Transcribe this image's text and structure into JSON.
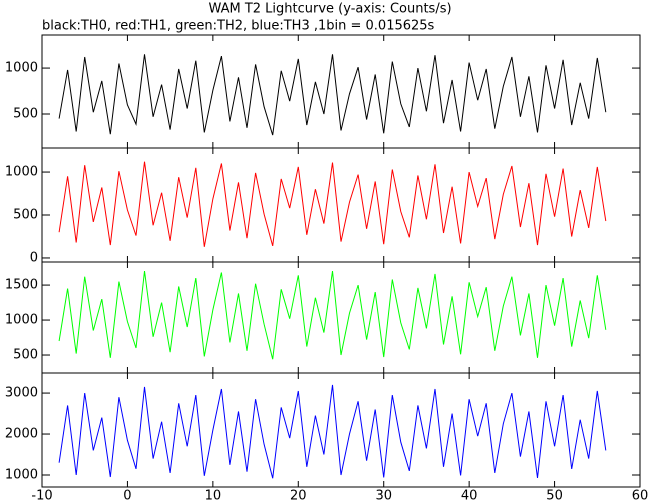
{
  "title": "WAM T2 Lightcurve (y-axis: Counts/s)",
  "subtitle": "black:TH0, red:TH1, green:TH2, blue:TH3 ,1bin = 0.015625s",
  "chart_data": [
    {
      "type": "line",
      "color": "#000000",
      "x": [
        -8,
        -7,
        -6,
        -5,
        -4,
        -3,
        -2,
        -1,
        0,
        1,
        2,
        3,
        4,
        5,
        6,
        7,
        8,
        9,
        10,
        11,
        12,
        13,
        14,
        15,
        16,
        17,
        18,
        19,
        20,
        21,
        22,
        23,
        24,
        25,
        26,
        27,
        28,
        29,
        30,
        31,
        32,
        33,
        34,
        35,
        36,
        37,
        38,
        39,
        40,
        41,
        42,
        43,
        44,
        45,
        46,
        47,
        48,
        49,
        50,
        51,
        52,
        53,
        54,
        55,
        56
      ],
      "values": [
        450,
        980,
        310,
        1120,
        520,
        860,
        280,
        1050,
        600,
        390,
        1150,
        470,
        820,
        330,
        990,
        560,
        1080,
        300,
        760,
        1130,
        420,
        900,
        350,
        1040,
        580,
        270,
        970,
        640,
        1100,
        380,
        850,
        500,
        1150,
        320,
        720,
        1010,
        440,
        930,
        290,
        1070,
        610,
        360,
        1000,
        530,
        1140,
        400,
        870,
        310,
        1060,
        650,
        990,
        340,
        800,
        1120,
        470,
        910,
        300,
        1030,
        560,
        1090,
        380,
        840,
        450,
        1110,
        520
      ],
      "xlim": [
        -10,
        60
      ],
      "xticks": [
        -10,
        0,
        10,
        20,
        30,
        40,
        50,
        60
      ],
      "ylim": [
        130,
        1360
      ],
      "yticks": [
        500,
        1000
      ]
    },
    {
      "type": "line",
      "color": "#ff0000",
      "x": [
        -8,
        -7,
        -6,
        -5,
        -4,
        -3,
        -2,
        -1,
        0,
        1,
        2,
        3,
        4,
        5,
        6,
        7,
        8,
        9,
        10,
        11,
        12,
        13,
        14,
        15,
        16,
        17,
        18,
        19,
        20,
        21,
        22,
        23,
        24,
        25,
        26,
        27,
        28,
        29,
        30,
        31,
        32,
        33,
        34,
        35,
        36,
        37,
        38,
        39,
        40,
        41,
        42,
        43,
        44,
        45,
        46,
        47,
        48,
        49,
        50,
        51,
        52,
        53,
        54,
        55,
        56
      ],
      "values": [
        300,
        950,
        180,
        1080,
        420,
        820,
        150,
        1010,
        560,
        260,
        1120,
        380,
        760,
        200,
        940,
        470,
        1050,
        130,
        690,
        1100,
        320,
        880,
        230,
        990,
        510,
        140,
        920,
        580,
        1060,
        270,
        800,
        400,
        1110,
        190,
        650,
        970,
        340,
        890,
        160,
        1030,
        540,
        240,
        960,
        450,
        1090,
        290,
        830,
        170,
        1000,
        600,
        930,
        220,
        740,
        1070,
        360,
        870,
        150,
        980,
        480,
        1040,
        250,
        790,
        350,
        1060,
        430
      ],
      "xlim": [
        -10,
        60
      ],
      "xticks": [
        -10,
        0,
        10,
        20,
        30,
        40,
        50,
        60
      ],
      "ylim": [
        -47,
        1280
      ],
      "yticks": [
        0,
        500,
        1000
      ]
    },
    {
      "type": "line",
      "color": "#00ff00",
      "x": [
        -8,
        -7,
        -6,
        -5,
        -4,
        -3,
        -2,
        -1,
        0,
        1,
        2,
        3,
        4,
        5,
        6,
        7,
        8,
        9,
        10,
        11,
        12,
        13,
        14,
        15,
        16,
        17,
        18,
        19,
        20,
        21,
        22,
        23,
        24,
        25,
        26,
        27,
        28,
        29,
        30,
        31,
        32,
        33,
        34,
        35,
        36,
        37,
        38,
        39,
        40,
        41,
        42,
        43,
        44,
        45,
        46,
        47,
        48,
        49,
        50,
        51,
        52,
        53,
        54,
        55,
        56
      ],
      "values": [
        700,
        1450,
        520,
        1620,
        850,
        1300,
        460,
        1550,
        980,
        600,
        1700,
        760,
        1250,
        540,
        1480,
        900,
        1600,
        480,
        1150,
        1680,
        680,
        1380,
        560,
        1520,
        940,
        440,
        1440,
        1020,
        1640,
        620,
        1320,
        820,
        1700,
        500,
        1100,
        1500,
        720,
        1400,
        470,
        1580,
        960,
        580,
        1460,
        880,
        1660,
        650,
        1340,
        510,
        1540,
        1050,
        1470,
        560,
        1200,
        1620,
        780,
        1380,
        460,
        1500,
        920,
        1600,
        620,
        1280,
        740,
        1640,
        860
      ],
      "xlim": [
        -10,
        60
      ],
      "xticks": [
        -10,
        0,
        10,
        20,
        30,
        40,
        50,
        60
      ],
      "ylim": [
        243,
        1830
      ],
      "yticks": [
        500,
        1000,
        1500
      ]
    },
    {
      "type": "line",
      "color": "#0000ff",
      "x": [
        -8,
        -7,
        -6,
        -5,
        -4,
        -3,
        -2,
        -1,
        0,
        1,
        2,
        3,
        4,
        5,
        6,
        7,
        8,
        9,
        10,
        11,
        12,
        13,
        14,
        15,
        16,
        17,
        18,
        19,
        20,
        21,
        22,
        23,
        24,
        25,
        26,
        27,
        28,
        29,
        30,
        31,
        32,
        33,
        34,
        35,
        36,
        37,
        38,
        39,
        40,
        41,
        42,
        43,
        44,
        45,
        46,
        47,
        48,
        49,
        50,
        51,
        52,
        53,
        54,
        55,
        56
      ],
      "values": [
        1300,
        2700,
        1000,
        3000,
        1600,
        2400,
        950,
        2900,
        1850,
        1150,
        3150,
        1400,
        2300,
        1050,
        2750,
        1700,
        2950,
        980,
        2100,
        3100,
        1250,
        2550,
        1080,
        2850,
        1750,
        920,
        2650,
        1900,
        3050,
        1200,
        2450,
        1500,
        3200,
        1000,
        2000,
        2800,
        1350,
        2600,
        940,
        2950,
        1800,
        1100,
        2700,
        1650,
        3100,
        1200,
        2500,
        990,
        2850,
        1950,
        2750,
        1050,
        2250,
        3000,
        1450,
        2550,
        930,
        2800,
        1700,
        2950,
        1150,
        2350,
        1400,
        3050,
        1600
      ],
      "xlim": [
        -10,
        60
      ],
      "xticks": [
        -10,
        0,
        10,
        20,
        30,
        40,
        50,
        60
      ],
      "ylim": [
        707,
        3490
      ],
      "yticks": [
        1000,
        2000,
        3000
      ]
    }
  ]
}
